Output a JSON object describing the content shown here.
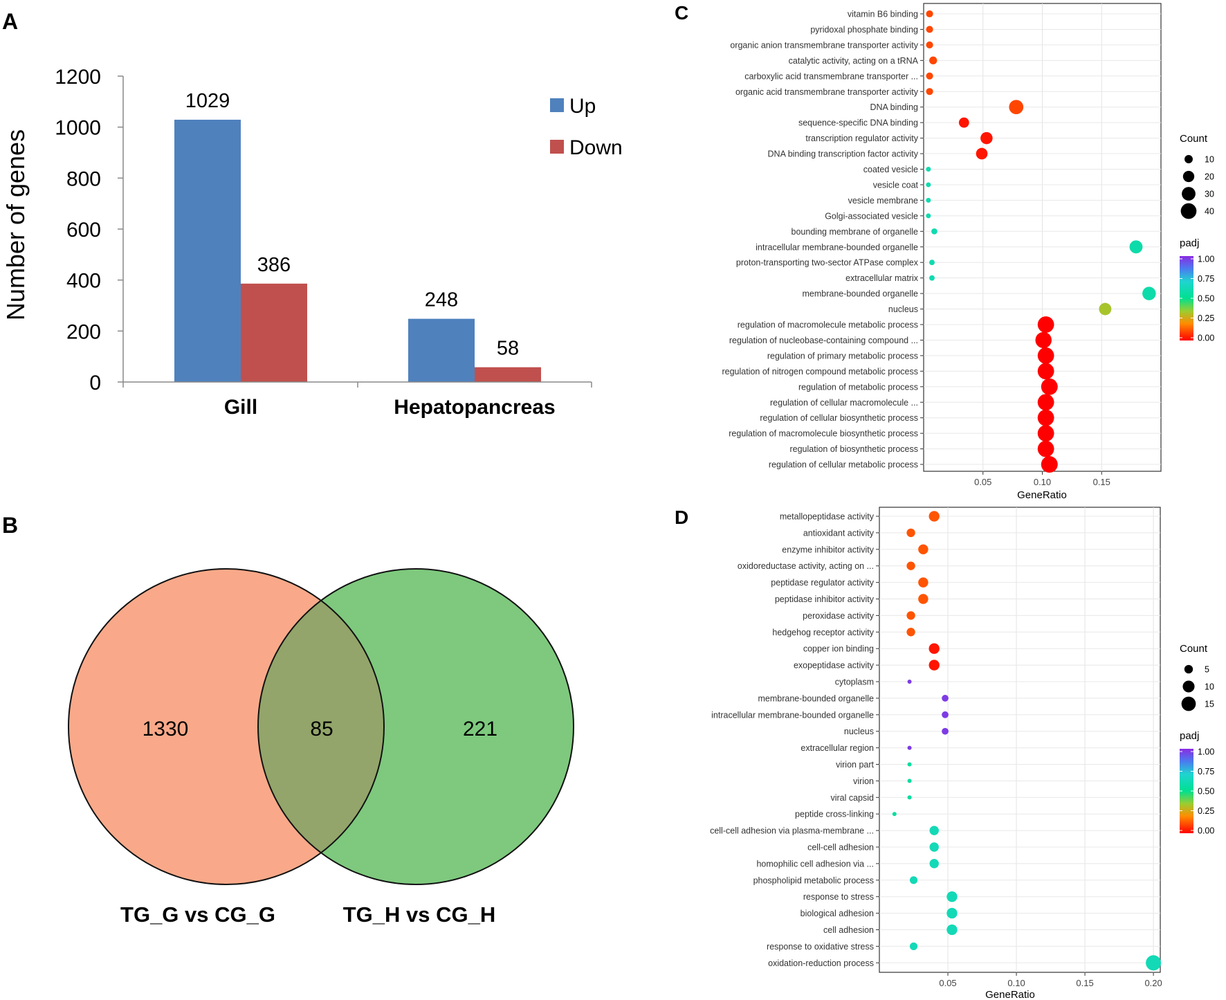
{
  "panels": {
    "a_label": "A",
    "b_label": "B",
    "c_label": "C",
    "d_label": "D"
  },
  "colors": {
    "up": "#4f81bd",
    "down": "#c0504d",
    "venn_left": "#f9a989",
    "venn_right": "#7ec97e",
    "venn_overlap": "#93a56a"
  },
  "chart_data": [
    {
      "id": "A",
      "type": "bar",
      "title": "",
      "xlabel": "",
      "ylabel": "Number of genes",
      "ylim": [
        0,
        1200
      ],
      "yticks": [
        "0",
        "200",
        "400",
        "600",
        "800",
        "1000",
        "1200"
      ],
      "categories": [
        "Gill",
        "Hepatopancreas"
      ],
      "series": [
        {
          "name": "Up",
          "color": "#4f81bd",
          "values": [
            1029,
            248
          ]
        },
        {
          "name": "Down",
          "color": "#c0504d",
          "values": [
            386,
            58
          ]
        }
      ],
      "legend": "top-right"
    },
    {
      "id": "B",
      "type": "venn",
      "sets": [
        {
          "name": "TG_G vs CG_G",
          "only": 1330
        },
        {
          "name": "TG_H vs CG_H",
          "only": 221
        }
      ],
      "intersection": 85,
      "only_labels": [
        "1330",
        "221"
      ],
      "intersection_label": "85"
    },
    {
      "id": "C",
      "type": "scatter",
      "xlabel": "GeneRatio",
      "xlim": [
        0.0,
        0.2
      ],
      "xticks": [
        0.05,
        0.1,
        0.15
      ],
      "xtick_labels": [
        "0.05",
        "0.10",
        "0.15"
      ],
      "size_legend_title": "Count",
      "size_legend": [
        10,
        20,
        30,
        40
      ],
      "size_legend_labels": [
        "10",
        "20",
        "30",
        "40"
      ],
      "color_legend_title": "padj",
      "color_legend_ticks": [
        "1.00",
        "0.75",
        "0.50",
        "0.25",
        "0.00"
      ],
      "terms": [
        {
          "label": "vitamin B6 binding",
          "ratio": 0.005,
          "count": 7,
          "padj": 0.1
        },
        {
          "label": "pyridoxal phosphate binding",
          "ratio": 0.005,
          "count": 7,
          "padj": 0.1
        },
        {
          "label": "organic anion transmembrane transporter activity",
          "ratio": 0.005,
          "count": 7,
          "padj": 0.1
        },
        {
          "label": "catalytic activity, acting on a tRNA",
          "ratio": 0.008,
          "count": 9,
          "padj": 0.1
        },
        {
          "label": "carboxylic acid transmembrane transporter ...",
          "ratio": 0.005,
          "count": 7,
          "padj": 0.1
        },
        {
          "label": "organic acid transmembrane transporter activity",
          "ratio": 0.005,
          "count": 7,
          "padj": 0.1
        },
        {
          "label": "DNA binding",
          "ratio": 0.078,
          "count": 33,
          "padj": 0.1
        },
        {
          "label": "sequence-specific DNA binding",
          "ratio": 0.034,
          "count": 16,
          "padj": 0.03
        },
        {
          "label": "transcription regulator activity",
          "ratio": 0.053,
          "count": 23,
          "padj": 0.03
        },
        {
          "label": "DNA binding transcription factor activity",
          "ratio": 0.049,
          "count": 21,
          "padj": 0.03
        },
        {
          "label": "coated vesicle",
          "ratio": 0.004,
          "count": 3,
          "padj": 0.6
        },
        {
          "label": "vesicle coat",
          "ratio": 0.004,
          "count": 3,
          "padj": 0.6
        },
        {
          "label": "vesicle membrane",
          "ratio": 0.004,
          "count": 3,
          "padj": 0.6
        },
        {
          "label": "Golgi-associated vesicle",
          "ratio": 0.004,
          "count": 3,
          "padj": 0.6
        },
        {
          "label": "bounding membrane of organelle",
          "ratio": 0.009,
          "count": 5,
          "padj": 0.6
        },
        {
          "label": "intracellular membrane-bounded organelle",
          "ratio": 0.179,
          "count": 27,
          "padj": 0.58
        },
        {
          "label": "proton-transporting two-sector ATPase complex",
          "ratio": 0.007,
          "count": 4,
          "padj": 0.6
        },
        {
          "label": "extracellular matrix",
          "ratio": 0.007,
          "count": 4,
          "padj": 0.6
        },
        {
          "label": "membrane-bounded organelle",
          "ratio": 0.19,
          "count": 29,
          "padj": 0.58
        },
        {
          "label": "nucleus",
          "ratio": 0.153,
          "count": 24,
          "padj": 0.33
        },
        {
          "label": "regulation of macromolecule metabolic process",
          "ratio": 0.103,
          "count": 44,
          "padj": 0.0
        },
        {
          "label": "regulation of nucleobase-containing compound ...",
          "ratio": 0.101,
          "count": 43,
          "padj": 0.0
        },
        {
          "label": "regulation of primary metabolic process",
          "ratio": 0.103,
          "count": 44,
          "padj": 0.0
        },
        {
          "label": "regulation of nitrogen compound metabolic process",
          "ratio": 0.103,
          "count": 44,
          "padj": 0.0
        },
        {
          "label": "regulation of metabolic process",
          "ratio": 0.106,
          "count": 45,
          "padj": 0.0
        },
        {
          "label": "regulation of cellular macromolecule ...",
          "ratio": 0.103,
          "count": 44,
          "padj": 0.0
        },
        {
          "label": "regulation of cellular biosynthetic process",
          "ratio": 0.103,
          "count": 44,
          "padj": 0.0
        },
        {
          "label": "regulation of macromolecule biosynthetic process",
          "ratio": 0.103,
          "count": 44,
          "padj": 0.0
        },
        {
          "label": "regulation of biosynthetic process",
          "ratio": 0.103,
          "count": 44,
          "padj": 0.0
        },
        {
          "label": "regulation of cellular metabolic process",
          "ratio": 0.106,
          "count": 45,
          "padj": 0.0
        }
      ]
    },
    {
      "id": "D",
      "type": "scatter",
      "xlabel": "GeneRatio",
      "xlim": [
        0.0,
        0.205
      ],
      "xticks": [
        0.05,
        0.1,
        0.15,
        0.2
      ],
      "xtick_labels": [
        "0.05",
        "0.10",
        "0.15",
        "0.20"
      ],
      "size_legend_title": "Count",
      "size_legend": [
        5,
        10,
        15
      ],
      "size_legend_labels": [
        "5",
        "10",
        "15"
      ],
      "color_legend_title": "padj",
      "color_legend_ticks": [
        "1.00",
        "0.75",
        "0.50",
        "0.25",
        "0.00"
      ],
      "terms": [
        {
          "label": "metallopeptidase activity",
          "ratio": 0.04,
          "count": 8,
          "padj": 0.12
        },
        {
          "label": "antioxidant activity",
          "ratio": 0.023,
          "count": 5,
          "padj": 0.12
        },
        {
          "label": "enzyme inhibitor activity",
          "ratio": 0.032,
          "count": 7,
          "padj": 0.12
        },
        {
          "label": "oxidoreductase activity, acting on ...",
          "ratio": 0.023,
          "count": 5,
          "padj": 0.12
        },
        {
          "label": "peptidase regulator activity",
          "ratio": 0.032,
          "count": 7,
          "padj": 0.12
        },
        {
          "label": "peptidase inhibitor activity",
          "ratio": 0.032,
          "count": 7,
          "padj": 0.12
        },
        {
          "label": "peroxidase activity",
          "ratio": 0.023,
          "count": 5,
          "padj": 0.12
        },
        {
          "label": "hedgehog receptor activity",
          "ratio": 0.023,
          "count": 5,
          "padj": 0.12
        },
        {
          "label": "copper ion binding",
          "ratio": 0.04,
          "count": 8,
          "padj": 0.03
        },
        {
          "label": "exopeptidase activity",
          "ratio": 0.04,
          "count": 8,
          "padj": 0.03
        },
        {
          "label": "cytoplasm",
          "ratio": 0.022,
          "count": 1,
          "padj": 0.97
        },
        {
          "label": "membrane-bounded organelle",
          "ratio": 0.048,
          "count": 3,
          "padj": 0.97
        },
        {
          "label": "intracellular membrane-bounded organelle",
          "ratio": 0.048,
          "count": 3,
          "padj": 0.97
        },
        {
          "label": "nucleus",
          "ratio": 0.048,
          "count": 3,
          "padj": 0.97
        },
        {
          "label": "extracellular region",
          "ratio": 0.022,
          "count": 1,
          "padj": 0.97
        },
        {
          "label": "virion part",
          "ratio": 0.022,
          "count": 1,
          "padj": 0.55
        },
        {
          "label": "virion",
          "ratio": 0.022,
          "count": 1,
          "padj": 0.55
        },
        {
          "label": "viral capsid",
          "ratio": 0.022,
          "count": 1,
          "padj": 0.55
        },
        {
          "label": "peptide cross-linking",
          "ratio": 0.011,
          "count": 1,
          "padj": 0.55
        },
        {
          "label": "cell-cell adhesion via plasma-membrane ...",
          "ratio": 0.04,
          "count": 6,
          "padj": 0.62
        },
        {
          "label": "cell-cell adhesion",
          "ratio": 0.04,
          "count": 6,
          "padj": 0.62
        },
        {
          "label": "homophilic cell adhesion via ...",
          "ratio": 0.04,
          "count": 6,
          "padj": 0.62
        },
        {
          "label": "phospholipid metabolic process",
          "ratio": 0.025,
          "count": 4,
          "padj": 0.62
        },
        {
          "label": "response to stress",
          "ratio": 0.053,
          "count": 8,
          "padj": 0.62
        },
        {
          "label": "biological adhesion",
          "ratio": 0.053,
          "count": 8,
          "padj": 0.62
        },
        {
          "label": "cell adhesion",
          "ratio": 0.053,
          "count": 8,
          "padj": 0.62
        },
        {
          "label": "response to oxidative stress",
          "ratio": 0.025,
          "count": 4,
          "padj": 0.62
        },
        {
          "label": "oxidation-reduction process",
          "ratio": 0.2,
          "count": 17,
          "padj": 0.62
        }
      ]
    }
  ]
}
